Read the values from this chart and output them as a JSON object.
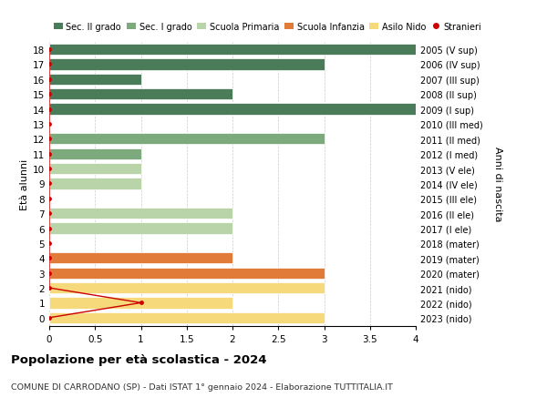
{
  "ages": [
    18,
    17,
    16,
    15,
    14,
    13,
    12,
    11,
    10,
    9,
    8,
    7,
    6,
    5,
    4,
    3,
    2,
    1,
    0
  ],
  "right_labels": [
    "2005 (V sup)",
    "2006 (IV sup)",
    "2007 (III sup)",
    "2008 (II sup)",
    "2009 (I sup)",
    "2010 (III med)",
    "2011 (II med)",
    "2012 (I med)",
    "2013 (V ele)",
    "2014 (IV ele)",
    "2015 (III ele)",
    "2016 (II ele)",
    "2017 (I ele)",
    "2018 (mater)",
    "2019 (mater)",
    "2020 (mater)",
    "2021 (nido)",
    "2022 (nido)",
    "2023 (nido)"
  ],
  "bar_values": [
    4,
    3,
    1,
    2,
    4,
    0,
    3,
    1,
    1,
    1,
    0,
    2,
    2,
    0,
    2,
    3,
    3,
    2,
    3
  ],
  "bar_colors": [
    "#4a7c59",
    "#4a7c59",
    "#4a7c59",
    "#4a7c59",
    "#4a7c59",
    "#7daa7d",
    "#7daa7d",
    "#7daa7d",
    "#b8d4a8",
    "#b8d4a8",
    "#b8d4a8",
    "#b8d4a8",
    "#b8d4a8",
    "#e07b39",
    "#e07b39",
    "#e07b39",
    "#f5d97a",
    "#f5d97a",
    "#f5d97a"
  ],
  "stranieri_values": [
    0,
    0,
    0,
    0,
    0,
    0,
    0,
    0,
    0,
    0,
    0,
    0,
    0,
    0,
    0,
    0,
    0,
    1,
    0
  ],
  "legend_labels": [
    "Sec. II grado",
    "Sec. I grado",
    "Scuola Primaria",
    "Scuola Infanzia",
    "Asilo Nido",
    "Stranieri"
  ],
  "legend_colors": [
    "#4a7c59",
    "#7daa7d",
    "#b8d4a8",
    "#e07b39",
    "#f5d97a",
    "#cc0000"
  ],
  "stranieri_color": "#cc0000",
  "ylabel": "Età alunni",
  "right_ylabel": "Anni di nascita",
  "title": "Popolazione per età scolastica - 2024",
  "subtitle": "COMUNE DI CARRODANO (SP) - Dati ISTAT 1° gennaio 2024 - Elaborazione TUTTITALIA.IT",
  "xlim": [
    0,
    4.0
  ],
  "xticks": [
    0,
    0.5,
    1.0,
    1.5,
    2.0,
    2.5,
    3.0,
    3.5,
    4.0
  ],
  "bar_height": 0.75,
  "background_color": "#ffffff",
  "grid_color": "#cccccc"
}
